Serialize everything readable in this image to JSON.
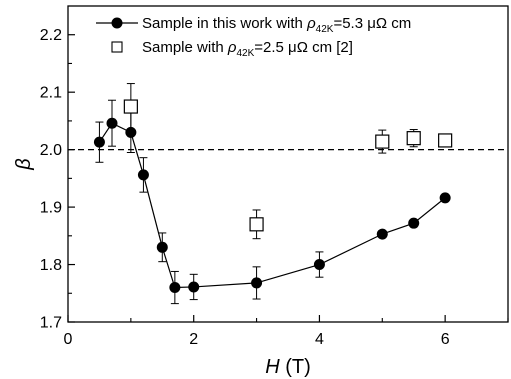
{
  "chart_data": {
    "type": "scatter",
    "xlabel": {
      "var": "H",
      "unit": "(T)"
    },
    "ylabel": {
      "var": "β"
    },
    "xlim": [
      0,
      7
    ],
    "ylim": [
      1.7,
      2.25
    ],
    "xticks": [
      "0",
      "2",
      "4",
      "6"
    ],
    "yticks": [
      "1.7",
      "1.8",
      "1.9",
      "2.0",
      "2.1",
      "2.2"
    ],
    "reference_line": {
      "y": 2.0,
      "style": "dashed"
    },
    "legend_position": "top-left",
    "series": [
      {
        "name": "Sample in this work with ρ42K=5.3 μΩ cm",
        "legend_parts": {
          "prefix": "Sample in this work with ",
          "rho": "ρ",
          "sub": "42K",
          "suffix": "=5.3 μΩ cm"
        },
        "marker": "filled-circle",
        "connected": true,
        "color": "#000000",
        "points": [
          {
            "x": 0.5,
            "y": 2.013,
            "err": 0.035
          },
          {
            "x": 0.7,
            "y": 2.046,
            "err": 0.04
          },
          {
            "x": 1.0,
            "y": 2.03,
            "err": 0.035
          },
          {
            "x": 1.2,
            "y": 1.956,
            "err": 0.03
          },
          {
            "x": 1.5,
            "y": 1.83,
            "err": 0.025
          },
          {
            "x": 1.7,
            "y": 1.76,
            "err": 0.028
          },
          {
            "x": 2.0,
            "y": 1.761,
            "err": 0.022
          },
          {
            "x": 3.0,
            "y": 1.768,
            "err": 0.028
          },
          {
            "x": 4.0,
            "y": 1.8,
            "err": 0.022
          },
          {
            "x": 5.0,
            "y": 1.853,
            "err": 0
          },
          {
            "x": 5.5,
            "y": 1.872,
            "err": 0
          },
          {
            "x": 6.0,
            "y": 1.916,
            "err": 0
          }
        ]
      },
      {
        "name": "Sample with ρ42K=2.5 μΩ cm [2]",
        "legend_parts": {
          "prefix": "Sample with ",
          "rho": "ρ",
          "sub": "42K",
          "suffix": "=2.5 μΩ cm [2]"
        },
        "marker": "open-square",
        "connected": false,
        "color": "#000000",
        "points": [
          {
            "x": 1.0,
            "y": 2.075,
            "err": 0.04
          },
          {
            "x": 3.0,
            "y": 1.87,
            "err": 0.025
          },
          {
            "x": 5.0,
            "y": 2.014,
            "err": 0.02
          },
          {
            "x": 5.5,
            "y": 2.02,
            "err": 0.015
          },
          {
            "x": 6.0,
            "y": 2.016,
            "err": 0
          }
        ]
      }
    ]
  }
}
